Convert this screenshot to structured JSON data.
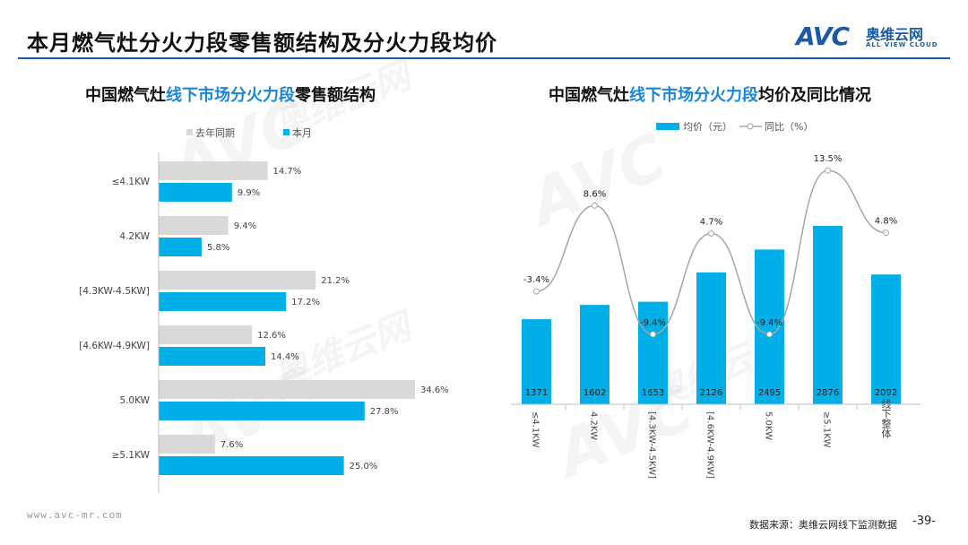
{
  "header": {
    "title": "本月燃气灶分火力段零售额结构及分火力段均价"
  },
  "logo": {
    "mark": "AVC",
    "cn": "奥维云网",
    "en": "ALL VIEW CLOUD"
  },
  "watermark": {
    "mark": "AVC",
    "cn": "奥维云网",
    "en": "ALL VIEW CLOUD"
  },
  "left_chart": {
    "title_pre": "中国燃气灶",
    "title_hl": "线下市场分火力段",
    "title_post": "零售额结构"
  },
  "right_chart": {
    "title_pre": "中国燃气灶",
    "title_hl": "线下市场分火力段",
    "title_post": "均价及同比情况"
  },
  "colors": {
    "current": "#00aee8",
    "last_year": "#d9d9d9",
    "line": "#a6a6a6",
    "accent": "#1a86d6",
    "brand": "#1a5aa6"
  },
  "chart_data": [
    {
      "type": "bar",
      "orientation": "horizontal",
      "categories": [
        "≤4.1KW",
        "4.2KW",
        "[4.3KW-4.5KW]",
        "[4.6KW-4.9KW]",
        "5.0KW",
        "≥5.1KW"
      ],
      "series": [
        {
          "name": "去年同期",
          "values": [
            14.7,
            9.4,
            21.2,
            12.6,
            34.6,
            7.6
          ],
          "labels": [
            "14.7%",
            "9.4%",
            "21.2%",
            "12.6%",
            "34.6%",
            "7.6%"
          ]
        },
        {
          "name": "本月",
          "values": [
            9.9,
            5.8,
            17.2,
            14.4,
            27.8,
            25.0
          ],
          "labels": [
            "9.9%",
            "5.8%",
            "17.2%",
            "14.4%",
            "27.8%",
            "25.0%"
          ]
        }
      ],
      "unit": "%",
      "xlim": [
        0,
        40
      ],
      "legend": "top"
    },
    {
      "type": "bar+line",
      "categories": [
        "≤4.1KW",
        "4.2KW",
        "[4.3KW-4.5KW]",
        "[4.6KW-4.9KW]",
        "5.0KW",
        "≥5.1KW",
        "线下整体"
      ],
      "bar_series": {
        "name": "均价（元）",
        "values": [
          1371,
          1602,
          1653,
          2126,
          2495,
          2876,
          2092
        ],
        "labels": [
          "1371",
          "1602",
          "1653",
          "2126",
          "2495",
          "2876",
          "2092"
        ]
      },
      "line_series": {
        "name": "同比（%）",
        "values": [
          -3.4,
          8.6,
          -9.4,
          4.7,
          -9.4,
          13.5,
          4.8
        ],
        "labels": [
          "-3.4%",
          "8.6%",
          "-9.4%",
          "4.7%",
          "-9.4%",
          "13.5%",
          "4.8%"
        ]
      },
      "ylim_bar": [
        0,
        4000
      ],
      "ylim_line": [
        -15,
        20
      ],
      "legend": "top"
    }
  ],
  "footer": {
    "url": "www.avc-mr.com",
    "source": "数据来源：奥维云网线下监测数据",
    "page": "-39-"
  }
}
